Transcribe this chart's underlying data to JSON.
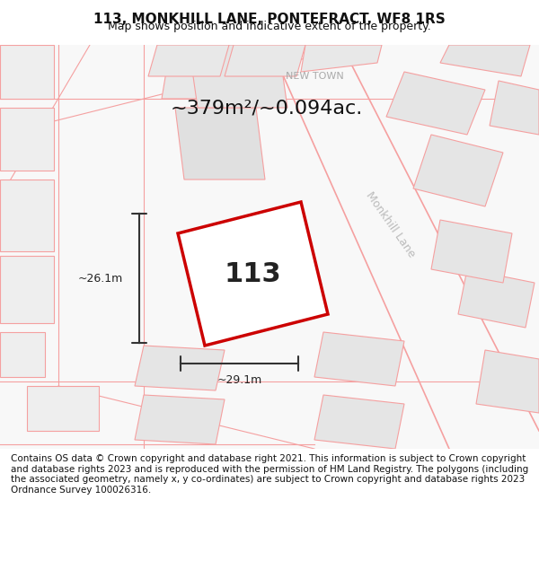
{
  "title_line1": "113, MONKHILL LANE, PONTEFRACT, WF8 1RS",
  "title_line2": "Map shows position and indicative extent of the property.",
  "footer_text": "Contains OS data © Crown copyright and database right 2021. This information is subject to Crown copyright and database rights 2023 and is reproduced with the permission of HM Land Registry. The polygons (including the associated geometry, namely x, y co-ordinates) are subject to Crown copyright and database rights 2023 Ordnance Survey 100026316.",
  "area_label": "~379m²/~0.094ac.",
  "property_number": "113",
  "width_label": "~29.1m",
  "height_label": "~26.1m",
  "street_label": "Monkhill Lane",
  "area_label2": "NEW TOWN",
  "bg_color": "#ffffff",
  "map_bg": "#f5f5f5",
  "block_fill": "#e8e8e8",
  "road_line_color": "#f5a0a0",
  "plot_line_color": "#cc0000",
  "annotation_color": "#333333",
  "street_label_color": "#aaaaaa",
  "title_fontsize": 11,
  "subtitle_fontsize": 9,
  "footer_fontsize": 7.5
}
